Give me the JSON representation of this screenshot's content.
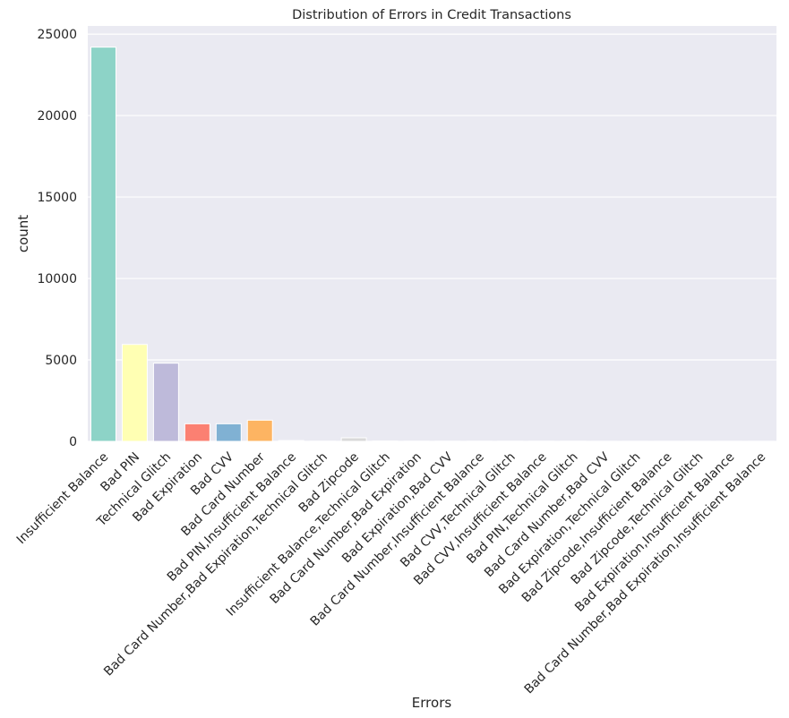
{
  "chart_data": {
    "type": "bar",
    "title": "Distribution of Errors in Credit Transactions",
    "xlabel": "Errors",
    "ylabel": "count",
    "ylim": [
      0,
      25500
    ],
    "yticks": [
      0,
      5000,
      10000,
      15000,
      20000,
      25000
    ],
    "grid": true,
    "categories": [
      "Insufficient Balance",
      "Bad PIN",
      "Technical Glitch",
      "Bad Expiration",
      "Bad CVV",
      "Bad Card Number",
      "Bad PIN,Insufficient Balance",
      "Bad Card Number,Bad Expiration,Technical Glitch",
      "Bad Zipcode",
      "Insufficient Balance,Technical Glitch",
      "Bad Card Number,Bad Expiration",
      "Bad Expiration,Bad CVV",
      "Bad Card Number,Insufficient Balance",
      "Bad CVV,Technical Glitch",
      "Bad CVV,Insufficient Balance",
      "Bad PIN,Technical Glitch",
      "Bad Card Number,Bad CVV",
      "Bad Expiration,Technical Glitch",
      "Bad Zipcode,Insufficient Balance",
      "Bad Zipcode,Technical Glitch",
      "Bad Expiration,Insufficient Balance",
      "Bad Card Number,Bad Expiration,Insufficient Balance"
    ],
    "values": [
      24200,
      5950,
      4800,
      1080,
      1080,
      1300,
      50,
      10,
      220,
      20,
      10,
      10,
      10,
      10,
      10,
      10,
      5,
      5,
      5,
      5,
      5,
      5
    ],
    "colors": [
      "#8dd3c7",
      "#ffffb3",
      "#bebada",
      "#fb8072",
      "#80b1d3",
      "#fdb462",
      "#b3de69",
      "#fccde5",
      "#d9d9d9",
      "#bc80bd",
      "#ccebc5",
      "#ffed6f",
      "#8dd3c7",
      "#ffffb3",
      "#bebada",
      "#fb8072",
      "#80b1d3",
      "#fdb462",
      "#b3de69",
      "#fccde5",
      "#d9d9d9",
      "#bc80bd"
    ],
    "background_color": "#eaeaf2",
    "grid_color": "#ffffff"
  }
}
